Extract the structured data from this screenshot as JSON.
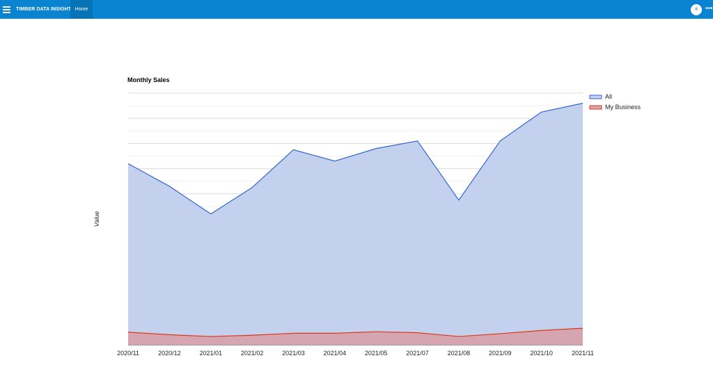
{
  "header": {
    "app_title": "TIMBER DATA INSIGHTS",
    "nav_home": "Home",
    "avatar_initial": "8",
    "more_icon": "ellipsis-icon"
  },
  "colors": {
    "topbar": "#0a84d0",
    "series_all": "#3366cc",
    "series_all_fill": "#c3d1ef",
    "series_business": "#dc3912",
    "series_business_fill": "#d6a5b2"
  },
  "chart_data": {
    "type": "area",
    "title": "Monthly Sales",
    "xlabel": "",
    "ylabel": "Value",
    "categories": [
      "2020/11",
      "2020/12",
      "2021/01",
      "2021/02",
      "2021/03",
      "2021/04",
      "2021/05",
      "2021/07",
      "2021/08",
      "2021/09",
      "2021/10",
      "2021/11"
    ],
    "series": [
      {
        "name": "All",
        "values": [
          72,
          63,
          52,
          62.5,
          77.5,
          73,
          78,
          81,
          57.5,
          81,
          92.5,
          96
        ]
      },
      {
        "name": "My Business",
        "values": [
          5,
          4,
          3.3,
          3.8,
          4.6,
          4.6,
          5.2,
          4.8,
          3.3,
          4.4,
          5.7,
          6.6
        ]
      }
    ],
    "ylim": [
      0,
      100
    ],
    "grid": true,
    "legend_position": "right"
  }
}
